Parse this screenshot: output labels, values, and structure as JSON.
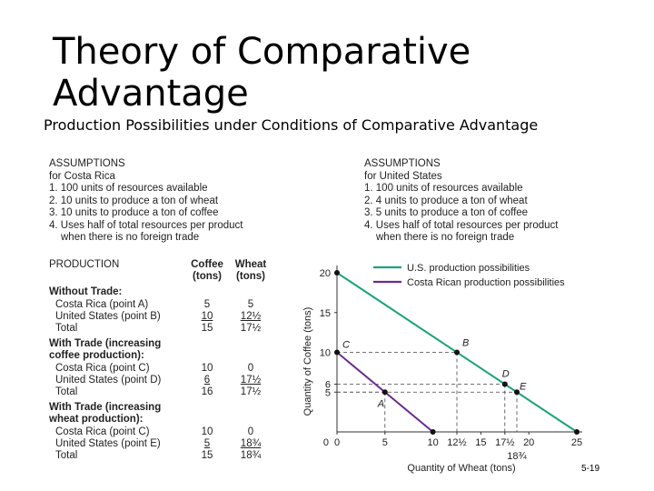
{
  "slide": {
    "title_line1": "Theory of Comparative",
    "title_line2": "Advantage",
    "subtitle": "Production Possibilities under Conditions of Comparative Advantage",
    "page_number": "5-19"
  },
  "assumptions_costa_rica": [
    "ASSUMPTIONS",
    "for Costa Rica",
    "1. 100 units of resources available",
    "2. 10 units to produce a ton of wheat",
    "3. 10 units to produce a ton of coffee",
    "4. Uses half of total resources per product",
    "when there is no foreign trade"
  ],
  "assumptions_us": [
    "ASSUMPTIONS",
    "for United States",
    "1. 100 units of resources available",
    "2. 4 units to produce a ton of wheat",
    "3. 5 units to produce a ton of coffee",
    "4. Uses half of total resources per product",
    "when there is no foreign trade"
  ],
  "production": {
    "header": {
      "label": "PRODUCTION",
      "col1": "Coffee",
      "col1b": "(tons)",
      "col2": "Wheat",
      "col2b": "(tons)"
    },
    "sections": [
      {
        "title": "Without Trade:",
        "title2": "",
        "rows": [
          {
            "label": "Costa Rica (point A)",
            "coffee": "5",
            "wheat": "5",
            "u": false
          },
          {
            "label": "United States (point B)",
            "coffee": "10",
            "wheat": "12½",
            "u": true
          },
          {
            "label": "Total",
            "coffee": "15",
            "wheat": "17½",
            "u": false
          }
        ]
      },
      {
        "title": "With Trade (increasing",
        "title2": "coffee production):",
        "rows": [
          {
            "label": "Costa Rica (point C)",
            "coffee": "10",
            "wheat": "0",
            "u": false
          },
          {
            "label": "United States (point D)",
            "coffee": "6",
            "wheat": "17½",
            "u": true
          },
          {
            "label": "Total",
            "coffee": "16",
            "wheat": "17½",
            "u": false
          }
        ]
      },
      {
        "title": "With Trade (increasing",
        "title2": "wheat production):",
        "rows": [
          {
            "label": "Costa Rica (point C)",
            "coffee": "10",
            "wheat": "0",
            "u": false
          },
          {
            "label": "United States (point E)",
            "coffee": "5",
            "wheat": "18¾",
            "u": true
          },
          {
            "label": "Total",
            "coffee": "15",
            "wheat": "18¾",
            "u": false
          }
        ]
      }
    ]
  },
  "chart_data": {
    "type": "line",
    "xlabel": "Quantity of Wheat (tons)",
    "ylabel": "Quantity of Coffee (tons)",
    "xlim": [
      0,
      25
    ],
    "ylim": [
      0,
      20
    ],
    "x_ticks": [
      0,
      5,
      10,
      12.5,
      15,
      17.5,
      20,
      25
    ],
    "x_tick_labels": [
      "0",
      "5",
      "10",
      "12½",
      "15",
      "17½",
      "20",
      "25"
    ],
    "y_ticks": [
      5,
      6,
      10,
      15,
      20
    ],
    "y_tick_labels": [
      "5",
      "6",
      "10",
      "15",
      "20"
    ],
    "extra_x_label": {
      "x": 18.75,
      "text": "18¾"
    },
    "series": [
      {
        "name": "U.S. production possibilities",
        "color": "#1aa37a",
        "points": [
          [
            0,
            20
          ],
          [
            25,
            0
          ]
        ]
      },
      {
        "name": "Costa Rican production possibilities",
        "color": "#6a2b8f",
        "points": [
          [
            0,
            10
          ],
          [
            10,
            0
          ]
        ]
      }
    ],
    "labeled_points": [
      {
        "label": "A",
        "x": 5,
        "y": 5
      },
      {
        "label": "B",
        "x": 12.5,
        "y": 10
      },
      {
        "label": "C",
        "x": 0,
        "y": 10
      },
      {
        "label": "D",
        "x": 17.5,
        "y": 6
      },
      {
        "label": "E",
        "x": 18.75,
        "y": 5
      }
    ],
    "end_points": [
      {
        "x": 0,
        "y": 20
      },
      {
        "x": 25,
        "y": 0
      },
      {
        "x": 10,
        "y": 0
      }
    ],
    "legend": "top-right"
  }
}
